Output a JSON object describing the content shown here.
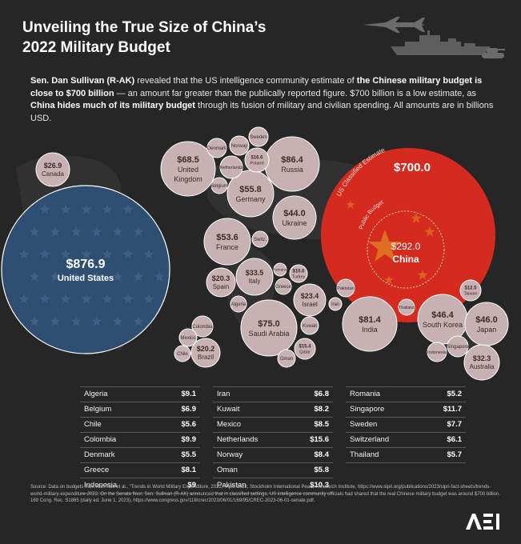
{
  "title": {
    "line1": "Unveiling the True Size of China’s",
    "line2": "2022 Military Budget"
  },
  "intro": {
    "p1": "Sen. Dan Sullivan (R-AK)",
    "p2": " revealed that the US intelligence community estimate of ",
    "p3": "the Chinese military budget is close to $700 billion",
    "p4": " — an amount far greater than the publically reported figure. $700 billion is a low estimate, as ",
    "p5": "China hides much of its military budget",
    "p6": " through its fusion of military and civilian spending. All amounts are in billions USD."
  },
  "colors": {
    "background": "#262626",
    "bubble": "#c7b1b3",
    "us": "#2f4f72",
    "china": "#d52b1e",
    "star": "#e8c428"
  },
  "chart_data": {
    "type": "bubble",
    "units": "billions USD",
    "labeled_bubbles": [
      {
        "value_label": "$876.9",
        "country": "United States",
        "value": 876.9
      },
      {
        "value_label": "$700.0",
        "country": "China",
        "value": 700.0,
        "arc_label": "US Classified Estimate"
      },
      {
        "value_label": "$292.0",
        "country": "China",
        "value": 292.0,
        "arc_label": "Public Budget"
      },
      {
        "value_label": "$86.4",
        "country": "Russia",
        "value": 86.4
      },
      {
        "value_label": "$81.4",
        "country": "India",
        "value": 81.4
      },
      {
        "value_label": "$75.0",
        "country": "Saudi Arabia",
        "value": 75.0
      },
      {
        "value_label": "$68.5",
        "country": "United Kingdom",
        "value": 68.5
      },
      {
        "value_label": "$55.8",
        "country": "Germany",
        "value": 55.8
      },
      {
        "value_label": "$53.6",
        "country": "France",
        "value": 53.6
      },
      {
        "value_label": "$46.4",
        "country": "South Korea",
        "value": 46.4
      },
      {
        "value_label": "$46.0",
        "country": "Japan",
        "value": 46.0
      },
      {
        "value_label": "$44.0",
        "country": "Ukraine",
        "value": 44.0
      },
      {
        "value_label": "$33.5",
        "country": "Italy",
        "value": 33.5
      },
      {
        "value_label": "$32.3",
        "country": "Australia",
        "value": 32.3
      },
      {
        "value_label": "$26.9",
        "country": "Canada",
        "value": 26.9
      },
      {
        "value_label": "$23.4",
        "country": "Israel",
        "value": 23.4
      },
      {
        "value_label": "$20.3",
        "country": "Spain",
        "value": 20.3
      },
      {
        "value_label": "$20.2",
        "country": "Brazil",
        "value": 20.2
      },
      {
        "value_label": "$16.6",
        "country": "Poland",
        "value": 16.6
      },
      {
        "value_label": "$15.4",
        "country": "Qatar",
        "value": 15.4
      },
      {
        "value_label": "$12.5",
        "country": "Taiwan",
        "value": 12.5
      },
      {
        "value_label": "$10.6",
        "country": "Turkey",
        "value": 10.6
      }
    ],
    "small_bubbles": [
      {
        "country": "Denmark",
        "value": 5.5
      },
      {
        "country": "Norway",
        "value": 8.4
      },
      {
        "country": "Sweden",
        "value": 7.7
      },
      {
        "country": "Netherlands",
        "value": 15.6
      },
      {
        "country": "Belgium",
        "value": 6.9
      },
      {
        "country": "Switz.",
        "value": 6.1
      },
      {
        "country": "Romania",
        "value": 5.2
      },
      {
        "country": "Greece",
        "value": 8.1
      },
      {
        "country": "Algeria",
        "value": 9.1
      },
      {
        "country": "Kuwait",
        "value": 8.2
      },
      {
        "country": "Oman",
        "value": 5.8
      },
      {
        "country": "Iran",
        "value": 6.8
      },
      {
        "country": "Pakistan",
        "value": 10.3
      },
      {
        "country": "Thailand",
        "value": 5.7
      },
      {
        "country": "Singapore",
        "value": 11.7
      },
      {
        "country": "Indonesia",
        "value": 9.0
      },
      {
        "country": "Colombia",
        "value": 9.9
      },
      {
        "country": "Mexico",
        "value": 8.5
      },
      {
        "country": "Chile",
        "value": 5.6
      }
    ],
    "tables": [
      [
        {
          "name": "Algeria",
          "value": "$9.1"
        },
        {
          "name": "Belgium",
          "value": "$6.9"
        },
        {
          "name": "Chile",
          "value": "$5.6"
        },
        {
          "name": "Colombia",
          "value": "$9.9"
        },
        {
          "name": "Denmark",
          "value": "$5.5"
        },
        {
          "name": "Greece",
          "value": "$8.1"
        },
        {
          "name": "Indonesia",
          "value": "$9"
        }
      ],
      [
        {
          "name": "Iran",
          "value": "$6.8"
        },
        {
          "name": "Kuwait",
          "value": "$8.2"
        },
        {
          "name": "Mexico",
          "value": "$8.5"
        },
        {
          "name": "Netherlands",
          "value": "$15.6"
        },
        {
          "name": "Norway",
          "value": "$8.4"
        },
        {
          "name": "Oman",
          "value": "$5.8"
        },
        {
          "name": "Pakistan",
          "value": "$10.3"
        }
      ],
      [
        {
          "name": "Romania",
          "value": "$5.2"
        },
        {
          "name": "Singapore",
          "value": "$11.7"
        },
        {
          "name": "Sweden",
          "value": "$7.7"
        },
        {
          "name": "Switzerland",
          "value": "$6.1"
        },
        {
          "name": "Thailand",
          "value": "$5.7"
        }
      ]
    ]
  },
  "source": "Source: Data on budgets from Nan Tian et al., “Trends in World Military Expenditure, 2022,” April 2023, Stockholm International Peace Research Institute, https://www.sipri.org/publications/2023/sipri-fact-sheets/trends-world-military-expenditure-2022. On the Senate floor, Sen. Sullivan (R-AK) announced that in classified settings, US intelligence community officials had shared that the real Chinese military budget was around $700 billion. 169 Cong. Rec. S1865 (daily ed. June 1, 2023), https://www.congress.gov/118/crec/2023/06/01/169/95/CREC-2023-06-01-senate.pdf.",
  "logo": "AEI"
}
